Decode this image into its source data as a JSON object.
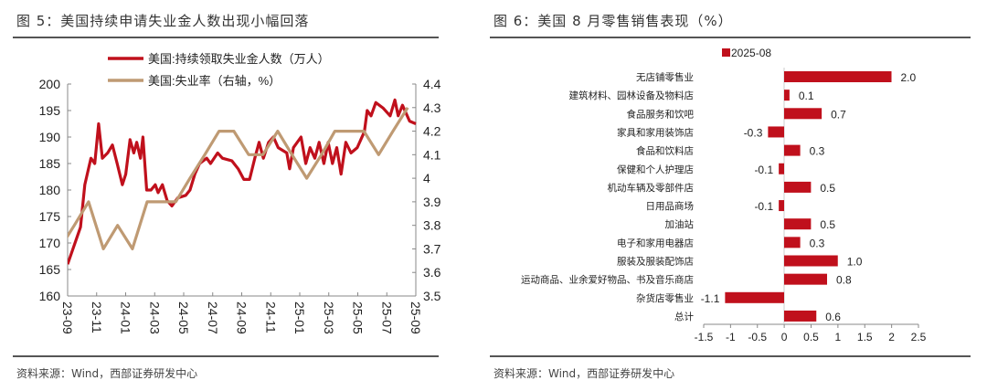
{
  "left": {
    "title": "图 5：美国持续申请失业金人数出现小幅回落",
    "source": "资料来源：Wind，西部证券研发中心"
  },
  "right": {
    "title": "图 6：美国 8 月零售销售表现（%）",
    "source": "资料来源：Wind，西部证券研发中心"
  },
  "chart_data": [
    {
      "type": "line",
      "title": "图 5：美国持续申请失业金人数出现小幅回落",
      "x_ticks": [
        "23-09",
        "23-11",
        "24-01",
        "24-03",
        "24-05",
        "24-07",
        "24-09",
        "24-11",
        "25-01",
        "25-03",
        "25-05",
        "25-07",
        "25-09"
      ],
      "x_range": [
        "2023-09-01",
        "2025-09-01"
      ],
      "y_left": {
        "range": [
          160,
          200
        ],
        "ticks": [
          160,
          165,
          170,
          175,
          180,
          185,
          190,
          195,
          200
        ]
      },
      "y_right": {
        "range": [
          3.5,
          4.4
        ],
        "ticks": [
          "3.5",
          "3.6",
          "3.7",
          "3.8",
          "3.9",
          "4",
          "4.1",
          "4.2",
          "4.3",
          "4.4"
        ]
      },
      "legend_position": "top",
      "grid": false,
      "series": [
        {
          "name": "美国:持续领取失业金人数（万人）",
          "axis": "left",
          "color": "#c0101c",
          "points": [
            [
              "2023-09-01",
              166
            ],
            [
              "2023-09-28",
              173
            ],
            [
              "2023-10-07",
              181
            ],
            [
              "2023-10-20",
              186
            ],
            [
              "2023-10-28",
              185
            ],
            [
              "2023-11-05",
              192.5
            ],
            [
              "2023-11-13",
              186
            ],
            [
              "2023-11-24",
              187
            ],
            [
              "2023-12-04",
              188.5
            ],
            [
              "2023-12-14",
              185
            ],
            [
              "2023-12-25",
              181
            ],
            [
              "2024-01-01",
              183
            ],
            [
              "2024-01-10",
              189.5
            ],
            [
              "2024-01-18",
              187
            ],
            [
              "2024-01-24",
              189
            ],
            [
              "2024-02-01",
              186
            ],
            [
              "2024-02-06",
              190
            ],
            [
              "2024-02-14",
              180
            ],
            [
              "2024-02-23",
              180
            ],
            [
              "2024-03-03",
              181
            ],
            [
              "2024-03-09",
              179.5
            ],
            [
              "2024-03-18",
              181
            ],
            [
              "2024-03-28",
              178
            ],
            [
              "2024-04-07",
              177
            ],
            [
              "2024-04-19",
              178.5
            ],
            [
              "2024-05-06",
              179
            ],
            [
              "2024-05-15",
              180
            ],
            [
              "2024-05-25",
              183
            ],
            [
              "2024-06-04",
              185
            ],
            [
              "2024-06-19",
              186
            ],
            [
              "2024-06-27",
              185
            ],
            [
              "2024-07-12",
              187
            ],
            [
              "2024-07-22",
              186
            ],
            [
              "2024-08-11",
              185.5
            ],
            [
              "2024-08-24",
              184
            ],
            [
              "2024-09-05",
              182
            ],
            [
              "2024-09-17",
              182
            ],
            [
              "2024-09-28",
              186
            ],
            [
              "2024-10-07",
              189
            ],
            [
              "2024-10-16",
              186
            ],
            [
              "2024-10-27",
              189
            ],
            [
              "2024-11-06",
              190
            ],
            [
              "2024-11-16",
              188
            ],
            [
              "2024-12-04",
              187
            ],
            [
              "2024-12-10",
              184
            ],
            [
              "2024-12-18",
              188
            ],
            [
              "2025-01-03",
              190
            ],
            [
              "2025-01-13",
              185
            ],
            [
              "2025-01-22",
              188
            ],
            [
              "2025-02-01",
              186
            ],
            [
              "2025-02-10",
              189
            ],
            [
              "2025-02-20",
              185
            ],
            [
              "2025-03-01",
              189
            ],
            [
              "2025-03-10",
              185
            ],
            [
              "2025-03-19",
              188
            ],
            [
              "2025-03-28",
              183
            ],
            [
              "2025-04-07",
              189
            ],
            [
              "2025-04-18",
              187
            ],
            [
              "2025-05-01",
              188
            ],
            [
              "2025-05-16",
              191
            ],
            [
              "2025-05-22",
              195
            ],
            [
              "2025-05-30",
              194
            ],
            [
              "2025-06-09",
              196.5
            ],
            [
              "2025-06-24",
              195.5
            ],
            [
              "2025-07-09",
              194
            ],
            [
              "2025-07-19",
              197
            ],
            [
              "2025-07-26",
              194
            ],
            [
              "2025-08-04",
              196
            ],
            [
              "2025-08-19",
              193
            ],
            [
              "2025-09-01",
              192.5
            ]
          ]
        },
        {
          "name": "美国:失业率（右轴，%）",
          "axis": "right",
          "color": "#bf9a73",
          "points": [
            [
              "2023-08-15",
              3.7
            ],
            [
              "2023-09-15",
              3.8
            ],
            [
              "2023-10-15",
              3.9
            ],
            [
              "2023-11-15",
              3.7
            ],
            [
              "2023-12-15",
              3.8
            ],
            [
              "2024-01-15",
              3.7
            ],
            [
              "2024-02-15",
              3.9
            ],
            [
              "2024-03-15",
              3.9
            ],
            [
              "2024-04-15",
              3.9
            ],
            [
              "2024-05-15",
              4.0
            ],
            [
              "2024-06-15",
              4.1
            ],
            [
              "2024-07-15",
              4.2
            ],
            [
              "2024-08-15",
              4.2
            ],
            [
              "2024-09-15",
              4.1
            ],
            [
              "2024-10-15",
              4.1
            ],
            [
              "2024-11-15",
              4.2
            ],
            [
              "2024-12-15",
              4.1
            ],
            [
              "2025-01-15",
              4.0
            ],
            [
              "2025-02-15",
              4.1
            ],
            [
              "2025-03-15",
              4.2
            ],
            [
              "2025-04-15",
              4.2
            ],
            [
              "2025-05-15",
              4.2
            ],
            [
              "2025-06-15",
              4.1
            ],
            [
              "2025-07-15",
              4.2
            ],
            [
              "2025-08-15",
              4.3
            ]
          ]
        }
      ]
    },
    {
      "type": "bar",
      "orientation": "horizontal",
      "title": "图 6：美国 8 月零售销售表现（%）",
      "categories": [
        "无店铺零售业",
        "建筑材料、园林设备及物料店",
        "食品服务和饮吧",
        "家具和家用装饰店",
        "食品和饮料店",
        "保健和个人护理店",
        "机动车辆及零部件店",
        "日用品商场",
        "加油站",
        "电子和家用电器店",
        "服装及服装配饰店",
        "运动商品、业余爱好物品、书及音乐商店",
        "杂货店零售业",
        "总计"
      ],
      "series": [
        {
          "name": "2025-08",
          "color": "#c0101c",
          "values": [
            2.0,
            0.1,
            0.7,
            -0.3,
            0.3,
            -0.1,
            0.5,
            -0.1,
            0.5,
            0.3,
            1.0,
            0.8,
            -1.1,
            0.6
          ]
        }
      ],
      "data_labels": [
        "2.0",
        "0.1",
        "0.7",
        "-0.3",
        "0.3",
        "-0.1",
        "0.5",
        "-0.1",
        "0.5",
        "0.3",
        "1.0",
        "0.8",
        "-1.1",
        "0.6"
      ],
      "x_range": [
        -1.5,
        2.5
      ],
      "x_ticks": [
        "-1.5",
        "-1",
        "-0.5",
        "0",
        "0.5",
        "1",
        "1.5",
        "2",
        "2.5"
      ],
      "legend_position": "top",
      "grid": false
    }
  ]
}
